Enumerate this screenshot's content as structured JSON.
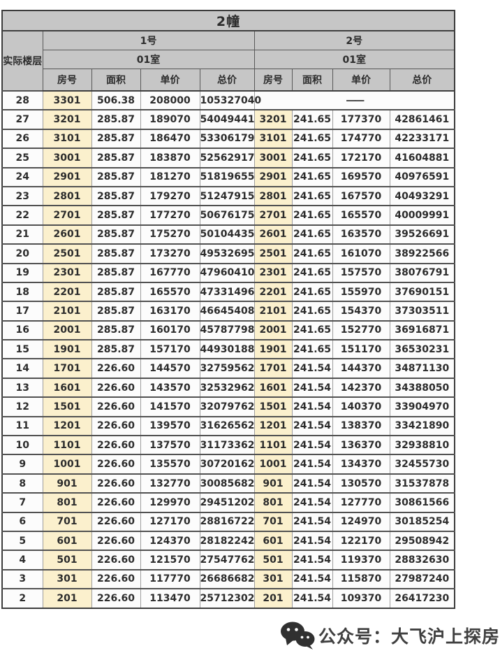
{
  "table": {
    "title": "2幢",
    "floor_header": "实际楼层",
    "units": [
      {
        "name": "1号",
        "room": "01室",
        "sub_headers": [
          "房号",
          "面积",
          "单价",
          "总价"
        ]
      },
      {
        "name": "2号",
        "room": "01室",
        "sub_headers": [
          "房号",
          "面积",
          "单价",
          "总价"
        ]
      }
    ],
    "no_data_dash": "——",
    "rows": [
      {
        "floor": "28",
        "unit1": [
          "3301",
          "506.38",
          "208000",
          "105327040"
        ],
        "unit2": null
      },
      {
        "floor": "27",
        "unit1": [
          "3201",
          "285.87",
          "189070",
          "54049441"
        ],
        "unit2": [
          "3201",
          "241.65",
          "177370",
          "42861461"
        ]
      },
      {
        "floor": "26",
        "unit1": [
          "3101",
          "285.87",
          "186470",
          "53306179"
        ],
        "unit2": [
          "3101",
          "241.65",
          "174770",
          "42233171"
        ]
      },
      {
        "floor": "25",
        "unit1": [
          "3001",
          "285.87",
          "183870",
          "52562917"
        ],
        "unit2": [
          "3001",
          "241.65",
          "172170",
          "41604881"
        ]
      },
      {
        "floor": "24",
        "unit1": [
          "2901",
          "285.87",
          "181270",
          "51819655"
        ],
        "unit2": [
          "2901",
          "241.65",
          "169570",
          "40976591"
        ]
      },
      {
        "floor": "23",
        "unit1": [
          "2801",
          "285.87",
          "179270",
          "51247915"
        ],
        "unit2": [
          "2801",
          "241.65",
          "167570",
          "40493291"
        ]
      },
      {
        "floor": "22",
        "unit1": [
          "2701",
          "285.87",
          "177270",
          "50676175"
        ],
        "unit2": [
          "2701",
          "241.65",
          "165570",
          "40009991"
        ]
      },
      {
        "floor": "21",
        "unit1": [
          "2601",
          "285.87",
          "175270",
          "50104435"
        ],
        "unit2": [
          "2601",
          "241.65",
          "163570",
          "39526691"
        ]
      },
      {
        "floor": "20",
        "unit1": [
          "2501",
          "285.87",
          "173270",
          "49532695"
        ],
        "unit2": [
          "2501",
          "241.65",
          "161070",
          "38922566"
        ]
      },
      {
        "floor": "19",
        "unit1": [
          "2301",
          "285.87",
          "167770",
          "47960410"
        ],
        "unit2": [
          "2301",
          "241.65",
          "157570",
          "38076791"
        ]
      },
      {
        "floor": "18",
        "unit1": [
          "2201",
          "285.87",
          "165570",
          "47331496"
        ],
        "unit2": [
          "2201",
          "241.65",
          "155970",
          "37690151"
        ]
      },
      {
        "floor": "17",
        "unit1": [
          "2101",
          "285.87",
          "163170",
          "46645408"
        ],
        "unit2": [
          "2101",
          "241.65",
          "154370",
          "37303511"
        ]
      },
      {
        "floor": "16",
        "unit1": [
          "2001",
          "285.87",
          "160170",
          "45787798"
        ],
        "unit2": [
          "2001",
          "241.65",
          "152770",
          "36916871"
        ]
      },
      {
        "floor": "15",
        "unit1": [
          "1901",
          "285.87",
          "157170",
          "44930188"
        ],
        "unit2": [
          "1901",
          "241.65",
          "151170",
          "36530231"
        ]
      },
      {
        "floor": "14",
        "unit1": [
          "1701",
          "226.60",
          "144570",
          "32759562"
        ],
        "unit2": [
          "1701",
          "241.54",
          "144370",
          "34871130"
        ]
      },
      {
        "floor": "13",
        "unit1": [
          "1601",
          "226.60",
          "143570",
          "32532962"
        ],
        "unit2": [
          "1601",
          "241.54",
          "142370",
          "34388050"
        ]
      },
      {
        "floor": "12",
        "unit1": [
          "1501",
          "226.60",
          "141570",
          "32079762"
        ],
        "unit2": [
          "1501",
          "241.54",
          "140370",
          "33904970"
        ]
      },
      {
        "floor": "11",
        "unit1": [
          "1201",
          "226.60",
          "139570",
          "31626562"
        ],
        "unit2": [
          "1201",
          "241.54",
          "138370",
          "33421890"
        ]
      },
      {
        "floor": "10",
        "unit1": [
          "1101",
          "226.60",
          "137570",
          "31173362"
        ],
        "unit2": [
          "1101",
          "241.54",
          "136370",
          "32938810"
        ]
      },
      {
        "floor": "9",
        "unit1": [
          "1001",
          "226.60",
          "135570",
          "30720162"
        ],
        "unit2": [
          "1001",
          "241.54",
          "134370",
          "32455730"
        ]
      },
      {
        "floor": "8",
        "unit1": [
          "901",
          "226.60",
          "132770",
          "30085682"
        ],
        "unit2": [
          "901",
          "241.54",
          "130570",
          "31537878"
        ]
      },
      {
        "floor": "7",
        "unit1": [
          "801",
          "226.60",
          "129970",
          "29451202"
        ],
        "unit2": [
          "801",
          "241.54",
          "127770",
          "30861566"
        ]
      },
      {
        "floor": "6",
        "unit1": [
          "701",
          "226.60",
          "127170",
          "28816722"
        ],
        "unit2": [
          "701",
          "241.54",
          "124970",
          "30185254"
        ]
      },
      {
        "floor": "5",
        "unit1": [
          "601",
          "226.60",
          "124370",
          "28182242"
        ],
        "unit2": [
          "601",
          "241.54",
          "122170",
          "29508942"
        ]
      },
      {
        "floor": "4",
        "unit1": [
          "501",
          "226.60",
          "121570",
          "27547762"
        ],
        "unit2": [
          "501",
          "241.54",
          "119370",
          "28832630"
        ]
      },
      {
        "floor": "3",
        "unit1": [
          "301",
          "226.60",
          "117770",
          "26686682"
        ],
        "unit2": [
          "301",
          "241.54",
          "115870",
          "27987240"
        ]
      },
      {
        "floor": "2",
        "unit1": [
          "201",
          "226.60",
          "113470",
          "25712302"
        ],
        "unit2": [
          "201",
          "241.54",
          "109370",
          "26417230"
        ]
      }
    ]
  },
  "watermark": {
    "icon": "wechat-icon",
    "text": "公众号：大飞沪上探房"
  },
  "colors": {
    "header_bg": "#c6c6c6",
    "room_col_bg": "#fbf0cd",
    "cell_bg": "#fcfcfc",
    "border_dark": "#4a4a4a",
    "border_light": "#9c9c9c",
    "text": "#2c2c2c",
    "watermark": "#262626",
    "page_bg": "#ffffff"
  }
}
